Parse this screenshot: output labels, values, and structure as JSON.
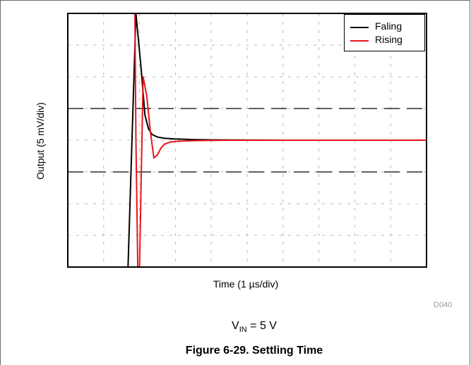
{
  "chart_data": {
    "type": "line",
    "title": "Figure 6-29. Settling Time",
    "xlabel": "Time (1 µs/div)",
    "ylabel": "Output (5 mV/div)",
    "xlim": [
      0,
      10
    ],
    "ylim": [
      -20,
      20
    ],
    "grid": true,
    "legend_position": "top-right",
    "reference_lines": [
      5,
      -5
    ],
    "code": "D040",
    "condition": {
      "prefix": "V",
      "sub": "IN",
      "suffix": " = 5 V"
    },
    "series": [
      {
        "name": "Faling",
        "color": "#000000",
        "x": [
          1.68,
          1.9,
          2.05,
          2.15,
          2.25,
          2.35,
          2.5,
          2.7,
          3.0,
          3.5,
          4.0,
          5.0,
          6.0,
          8.0,
          10.0
        ],
        "y": [
          -20,
          20,
          11,
          4,
          1.8,
          0.9,
          0.5,
          0.3,
          0.2,
          0.1,
          0.05,
          0.02,
          0.0,
          0.0,
          0.0
        ]
      },
      {
        "name": "Rising",
        "color": "#e8141b",
        "x": [
          1.82,
          1.87,
          1.9,
          1.95,
          2.0,
          2.1,
          2.2,
          2.3,
          2.4,
          2.5,
          2.6,
          2.7,
          2.85,
          3.0,
          3.3,
          3.8,
          4.5,
          6.0,
          8.0,
          10.0
        ],
        "y": [
          20,
          20,
          0,
          -20,
          -20,
          10,
          7,
          1.5,
          -2.8,
          -2.3,
          -1.2,
          -0.6,
          -0.3,
          -0.2,
          -0.1,
          -0.05,
          0.0,
          0.0,
          0.0,
          0.0
        ]
      }
    ]
  }
}
